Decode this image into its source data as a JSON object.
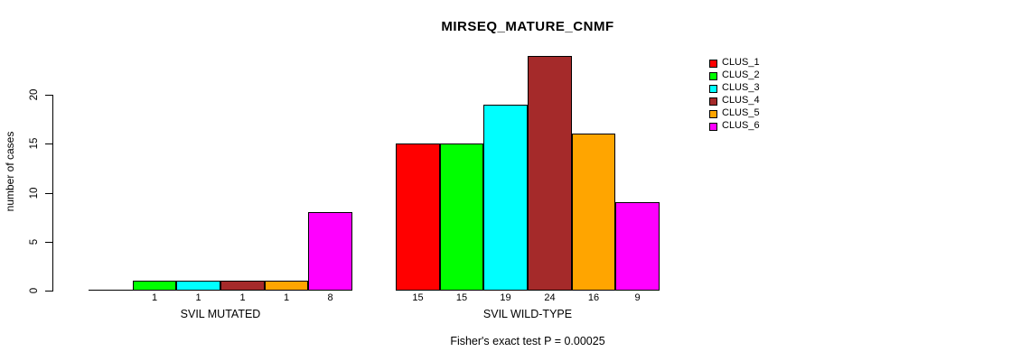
{
  "title": "MIRSEQ_MATURE_CNMF",
  "chart_data": {
    "type": "bar",
    "title": "MIRSEQ_MATURE_CNMF",
    "xlabel": "",
    "ylabel": "number of cases",
    "ylim": [
      0,
      20
    ],
    "yticks": [
      0,
      5,
      10,
      15,
      20
    ],
    "grid": false,
    "legend_position": "right",
    "categories": [
      "SVIL MUTATED",
      "SVIL WILD-TYPE"
    ],
    "series": [
      {
        "name": "CLUS_1",
        "color": "#FF0000",
        "values": [
          0,
          15
        ]
      },
      {
        "name": "CLUS_2",
        "color": "#00FF00",
        "values": [
          1,
          15
        ]
      },
      {
        "name": "CLUS_3",
        "color": "#00FFFF",
        "values": [
          1,
          19
        ]
      },
      {
        "name": "CLUS_4",
        "color": "#A52A2A",
        "values": [
          1,
          24
        ]
      },
      {
        "name": "CLUS_5",
        "color": "#FFA500",
        "values": [
          1,
          16
        ]
      },
      {
        "name": "CLUS_6",
        "color": "#FF00FF",
        "values": [
          8,
          9
        ]
      }
    ],
    "bar_value_labels_shown": true,
    "annotation": "Fisher's exact test P = 0.00025"
  }
}
